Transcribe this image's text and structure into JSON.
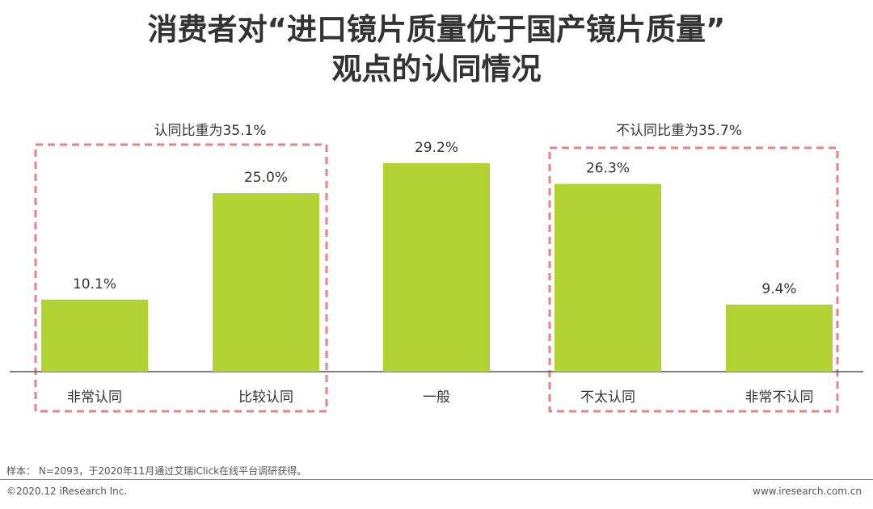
{
  "title_line1": "消费者对“进口镜片质量优于国产镜片质量”",
  "title_line2": "观点的认同情况",
  "groups": {
    "agree": {
      "label": "认同比重为35.1%"
    },
    "disagree": {
      "label": "不认同比重为35.7%"
    }
  },
  "chart_data": {
    "type": "bar",
    "title": "消费者对“进口镜片质量优于国产镜片质量”观点的认同情况",
    "categories": [
      "非常认同",
      "比较认同",
      "一般",
      "不太认同",
      "非常不认同"
    ],
    "values": [
      10.1,
      25.0,
      29.2,
      26.3,
      9.4
    ],
    "data_labels": [
      "10.1%",
      "25.0%",
      "29.2%",
      "26.3%",
      "9.4%"
    ],
    "unit": "%",
    "ylim": [
      0,
      30
    ],
    "grid": false,
    "legend": "none",
    "bar_color": "#b3d334",
    "group_box_color": "#e8828a"
  },
  "footer": {
    "sample_note": "样本： N=2093，于2020年11月通过艾瑞iClick在线平台调研获得。",
    "copyright": "©2020.12 iResearch Inc.",
    "website": "www.iresearch.com.cn"
  },
  "colors": {
    "bar": "#b3d334",
    "dashed_box": "#e8828a",
    "axis": "#555555",
    "text": "#333333"
  }
}
